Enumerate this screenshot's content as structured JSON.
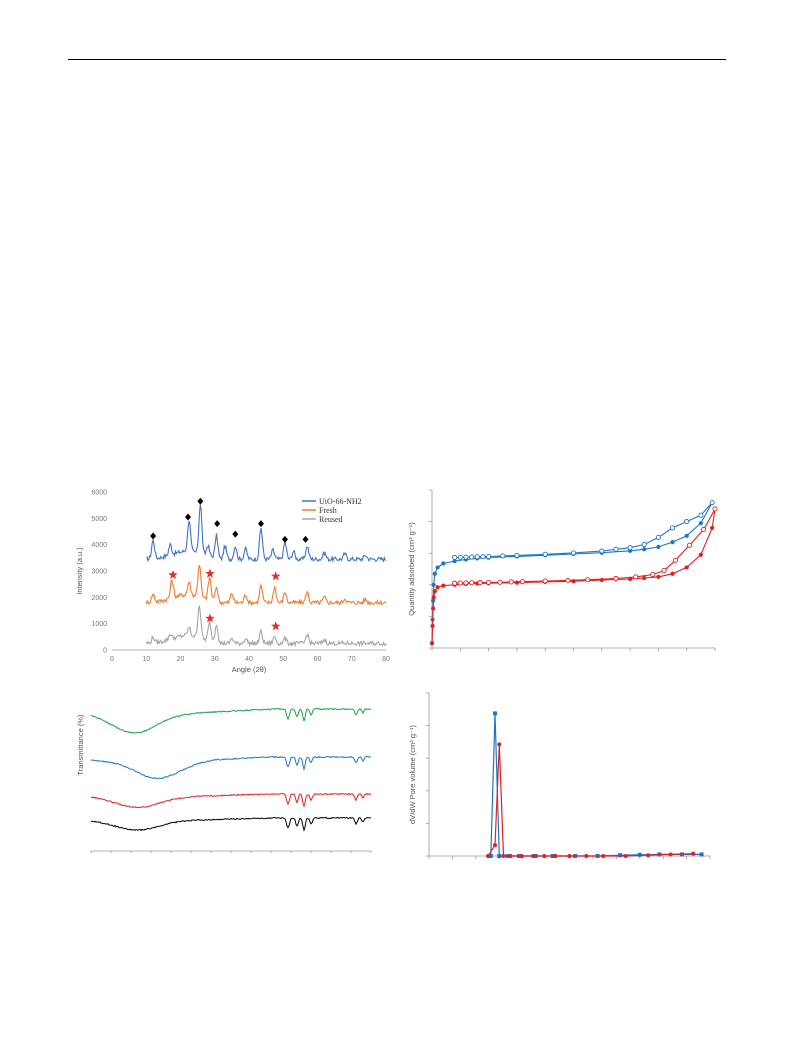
{
  "page": {
    "header_rule": true
  },
  "chart_data": [
    {
      "id": "xrd",
      "type": "line",
      "title": "",
      "xlabel": "Angle (2θ)",
      "ylabel": "Intensity (a.u.)",
      "xlim": [
        0,
        80
      ],
      "ylim": [
        0,
        6000
      ],
      "xticks": [
        0,
        10,
        20,
        30,
        40,
        50,
        60,
        70,
        80
      ],
      "yticks": [
        0,
        1000,
        2000,
        3000,
        4000,
        5000,
        6000
      ],
      "legend_position": "top-right",
      "series": [
        {
          "name": "UiO-66-NH2",
          "color": "#4472c4",
          "baseline": 3450,
          "peaks": [
            [
              12,
              700
            ],
            [
              17,
              400
            ],
            [
              22.5,
              1200
            ],
            [
              25.8,
              1900
            ],
            [
              28,
              400
            ],
            [
              30.5,
              900
            ],
            [
              33,
              500
            ],
            [
              36,
              500
            ],
            [
              39,
              400
            ],
            [
              43.5,
              1200
            ],
            [
              47,
              350
            ],
            [
              50.5,
              650
            ],
            [
              53,
              300
            ],
            [
              57,
              500
            ],
            [
              62,
              250
            ],
            [
              68,
              200
            ],
            [
              74,
              150
            ]
          ]
        },
        {
          "name": "Fresh",
          "color": "#ed7d31",
          "baseline": 1800,
          "peaks": [
            [
              12,
              300
            ],
            [
              17.5,
              700
            ],
            [
              22.5,
              500
            ],
            [
              25.5,
              1250
            ],
            [
              28.5,
              850
            ],
            [
              30.5,
              600
            ],
            [
              35,
              350
            ],
            [
              39,
              300
            ],
            [
              43.5,
              650
            ],
            [
              47.5,
              600
            ],
            [
              50.5,
              400
            ],
            [
              57,
              400
            ],
            [
              62,
              200
            ],
            [
              68,
              150
            ],
            [
              74,
              120
            ]
          ]
        },
        {
          "name": "Reused",
          "color": "#a5a5a5",
          "baseline": 250,
          "peaks": [
            [
              12,
              200
            ],
            [
              17,
              200
            ],
            [
              22.5,
              300
            ],
            [
              25.5,
              1250
            ],
            [
              28.5,
              700
            ],
            [
              30.5,
              750
            ],
            [
              35,
              200
            ],
            [
              39,
              200
            ],
            [
              43.5,
              450
            ],
            [
              47.5,
              250
            ],
            [
              50.5,
              200
            ],
            [
              57,
              350
            ],
            [
              62,
              150
            ]
          ]
        }
      ],
      "markers": {
        "diamonds": [
          [
            12,
            4330
          ],
          [
            22.2,
            5050
          ],
          [
            25.8,
            5650
          ],
          [
            30.7,
            4800
          ],
          [
            36,
            4400
          ],
          [
            43.5,
            4800
          ],
          [
            50.5,
            4200
          ],
          [
            56.5,
            4200
          ]
        ],
        "stars": [
          [
            17.8,
            2850
          ],
          [
            28.6,
            2900
          ],
          [
            47.8,
            2800
          ],
          [
            28.6,
            1200
          ],
          [
            47.8,
            900
          ]
        ]
      }
    },
    {
      "id": "isotherm",
      "type": "scatter",
      "title": "",
      "xlabel": "",
      "ylabel": "Quantity adsorbed (cm³ g⁻¹)",
      "xlim": [
        0,
        1
      ],
      "ylim": [
        0,
        1
      ],
      "series": [
        {
          "name": "",
          "color": "#1f77c4",
          "adsorption": [
            [
              0.0,
              0.03
            ],
            [
              0.002,
              0.18
            ],
            [
              0.004,
              0.3
            ],
            [
              0.006,
              0.4
            ],
            [
              0.01,
              0.47
            ],
            [
              0.02,
              0.51
            ],
            [
              0.04,
              0.535
            ],
            [
              0.08,
              0.55
            ],
            [
              0.12,
              0.56
            ],
            [
              0.16,
              0.567
            ],
            [
              0.2,
              0.572
            ],
            [
              0.3,
              0.58
            ],
            [
              0.4,
              0.587
            ],
            [
              0.5,
              0.595
            ],
            [
              0.6,
              0.603
            ],
            [
              0.7,
              0.615
            ],
            [
              0.75,
              0.625
            ],
            [
              0.8,
              0.64
            ],
            [
              0.85,
              0.67
            ],
            [
              0.9,
              0.71
            ],
            [
              0.95,
              0.79
            ],
            [
              0.99,
              0.92
            ]
          ],
          "desorption": [
            [
              0.99,
              0.92
            ],
            [
              0.95,
              0.84
            ],
            [
              0.9,
              0.8
            ],
            [
              0.85,
              0.76
            ],
            [
              0.8,
              0.7
            ],
            [
              0.75,
              0.655
            ],
            [
              0.7,
              0.635
            ],
            [
              0.65,
              0.625
            ],
            [
              0.6,
              0.614
            ],
            [
              0.5,
              0.602
            ],
            [
              0.4,
              0.593
            ],
            [
              0.3,
              0.586
            ],
            [
              0.25,
              0.583
            ],
            [
              0.2,
              0.579
            ],
            [
              0.18,
              0.578
            ],
            [
              0.16,
              0.577
            ],
            [
              0.14,
              0.576
            ],
            [
              0.12,
              0.575
            ],
            [
              0.1,
              0.574
            ],
            [
              0.08,
              0.573
            ]
          ]
        },
        {
          "name": "",
          "color": "#e02020",
          "adsorption": [
            [
              0.0,
              0.03
            ],
            [
              0.002,
              0.14
            ],
            [
              0.004,
              0.25
            ],
            [
              0.006,
              0.32
            ],
            [
              0.01,
              0.36
            ],
            [
              0.02,
              0.385
            ],
            [
              0.04,
              0.395
            ],
            [
              0.08,
              0.4
            ],
            [
              0.12,
              0.405
            ],
            [
              0.16,
              0.408
            ],
            [
              0.2,
              0.41
            ],
            [
              0.3,
              0.414
            ],
            [
              0.4,
              0.418
            ],
            [
              0.5,
              0.423
            ],
            [
              0.6,
              0.43
            ],
            [
              0.7,
              0.437
            ],
            [
              0.75,
              0.443
            ],
            [
              0.8,
              0.45
            ],
            [
              0.85,
              0.47
            ],
            [
              0.9,
              0.51
            ],
            [
              0.95,
              0.59
            ],
            [
              0.99,
              0.76
            ],
            [
              1.0,
              0.88
            ]
          ],
          "desorption": [
            [
              1.0,
              0.88
            ],
            [
              0.96,
              0.75
            ],
            [
              0.91,
              0.65
            ],
            [
              0.86,
              0.555
            ],
            [
              0.82,
              0.49
            ],
            [
              0.78,
              0.465
            ],
            [
              0.72,
              0.45
            ],
            [
              0.65,
              0.44
            ],
            [
              0.55,
              0.432
            ],
            [
              0.48,
              0.428
            ],
            [
              0.4,
              0.424
            ],
            [
              0.32,
              0.42
            ],
            [
              0.28,
              0.418
            ],
            [
              0.24,
              0.416
            ],
            [
              0.2,
              0.415
            ],
            [
              0.17,
              0.414
            ],
            [
              0.14,
              0.413
            ],
            [
              0.12,
              0.412
            ],
            [
              0.1,
              0.411
            ],
            [
              0.08,
              0.41
            ]
          ]
        }
      ]
    },
    {
      "id": "ftir",
      "type": "line",
      "title": "",
      "xlabel": "",
      "ylabel": "Transmittance (%)",
      "series": [
        {
          "name": "",
          "color": "#1aa34a",
          "offset": 0
        },
        {
          "name": "",
          "color": "#1f77c4",
          "offset": 1
        },
        {
          "name": "",
          "color": "#e02020",
          "offset": 2
        },
        {
          "name": "",
          "color": "#000000",
          "offset": 3
        }
      ]
    },
    {
      "id": "pore",
      "type": "line",
      "title": "",
      "xlabel": "",
      "ylabel": "dV/dW Pore volume (cm³ g⁻¹)",
      "series": [
        {
          "name": "",
          "color": "#1f77c4",
          "points": [
            [
              0.22,
              0.0
            ],
            [
              0.235,
              0.92
            ],
            [
              0.25,
              0.0
            ],
            [
              0.28,
              0.0
            ],
            [
              0.32,
              0.0
            ],
            [
              0.38,
              0.0
            ],
            [
              0.44,
              0.0
            ],
            [
              0.52,
              0.0
            ],
            [
              0.6,
              0.0
            ],
            [
              0.68,
              0.005
            ],
            [
              0.75,
              0.008
            ],
            [
              0.82,
              0.01
            ],
            [
              0.9,
              0.01
            ],
            [
              0.97,
              0.01
            ]
          ]
        },
        {
          "name": "",
          "color": "#e02020",
          "points": [
            [
              0.21,
              0.0
            ],
            [
              0.235,
              0.07
            ],
            [
              0.25,
              0.72
            ],
            [
              0.265,
              0.0
            ],
            [
              0.29,
              0.0
            ],
            [
              0.33,
              0.0
            ],
            [
              0.37,
              0.0
            ],
            [
              0.41,
              0.0
            ],
            [
              0.45,
              0.0
            ],
            [
              0.5,
              0.0
            ],
            [
              0.56,
              0.0
            ],
            [
              0.62,
              0.0
            ],
            [
              0.7,
              0.0
            ],
            [
              0.78,
              0.005
            ],
            [
              0.86,
              0.01
            ],
            [
              0.94,
              0.015
            ]
          ]
        }
      ]
    }
  ]
}
